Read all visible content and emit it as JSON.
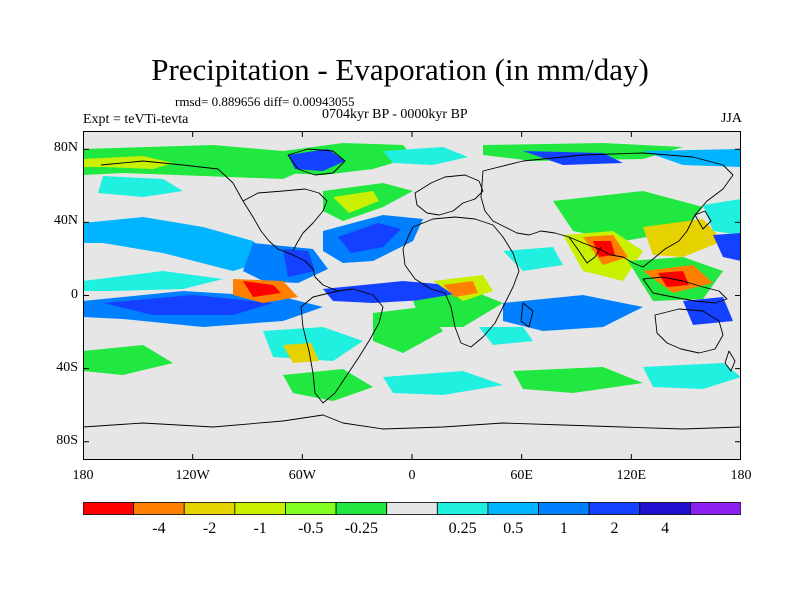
{
  "title": "Precipitation - Evaporation (in mm/day)",
  "stats_text": "rmsd= 0.889656 diff= 0.00943055",
  "experiment_label": "Expt = teVTi-tevta",
  "period_label": "0704kyr BP - 0000kyr BP",
  "season_label": "JJA",
  "map": {
    "projection": "cylindrical equidistant",
    "lon_range": [
      -180,
      180
    ],
    "lat_range": [
      -90,
      90
    ],
    "lat_ticks": [
      {
        "value": 80,
        "label": "80N"
      },
      {
        "value": 40,
        "label": "40N"
      },
      {
        "value": 0,
        "label": "0"
      },
      {
        "value": -40,
        "label": "40S"
      },
      {
        "value": -80,
        "label": "80S"
      }
    ],
    "lon_ticks": [
      {
        "value": -180,
        "label": "180"
      },
      {
        "value": -120,
        "label": "120W"
      },
      {
        "value": -60,
        "label": "60W"
      },
      {
        "value": 0,
        "label": "0"
      },
      {
        "value": 60,
        "label": "60E"
      },
      {
        "value": 120,
        "label": "120E"
      },
      {
        "value": 180,
        "label": "180"
      }
    ],
    "background_color": "#e6e6e6"
  },
  "legend": {
    "colors": [
      "#ff0000",
      "#ff8000",
      "#e6d200",
      "#c8f000",
      "#80ff20",
      "#20e840",
      "#e6e6e6",
      "#20f0e0",
      "#00b4ff",
      "#0080ff",
      "#1440ff",
      "#2010d0",
      "#8c20f0"
    ],
    "labels": [
      "-4",
      "-2",
      "-1",
      "-0.5",
      "-0.25",
      "0.25",
      "0.5",
      "1",
      "2",
      "4"
    ]
  }
}
